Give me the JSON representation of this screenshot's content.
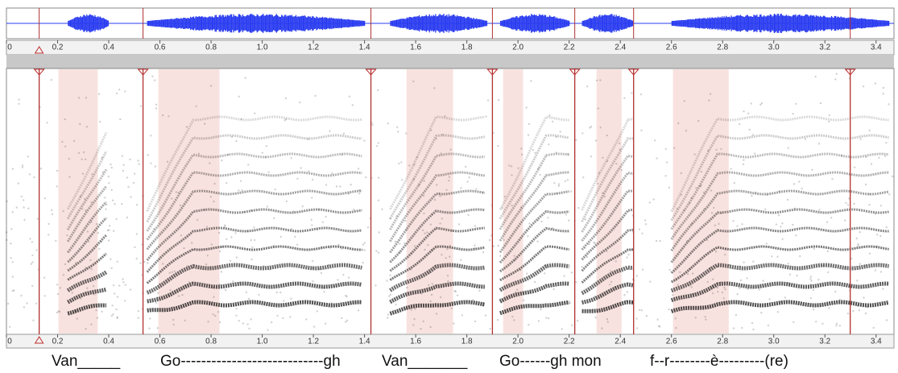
{
  "time_axis": {
    "xlim": [
      0,
      3.47
    ],
    "ticks": [
      0,
      0.2,
      0.4,
      0.6,
      0.8,
      {
        "value": 1.0,
        "label": "1.0"
      },
      1.2,
      1.4,
      1.6,
      1.8,
      {
        "value": 2.0,
        "label": "2.0"
      },
      2.2,
      2.4,
      2.6,
      2.8,
      {
        "value": 3.0,
        "label": "3.0"
      },
      3.2,
      3.4
    ]
  },
  "markers": [
    0.128,
    0.534,
    1.425,
    1.9,
    2.222,
    2.452,
    3.299
  ],
  "regions": [
    [
      0.203,
      0.357
    ],
    [
      0.594,
      0.833
    ],
    [
      1.564,
      1.746
    ],
    [
      1.942,
      2.02
    ],
    [
      2.307,
      2.405
    ],
    [
      2.606,
      2.824
    ]
  ],
  "lyrics": [
    "Van_____",
    "Go----------------------------gh",
    "Van_______",
    "Go------gh mon",
    "f--r--------è---------(re)"
  ]
}
